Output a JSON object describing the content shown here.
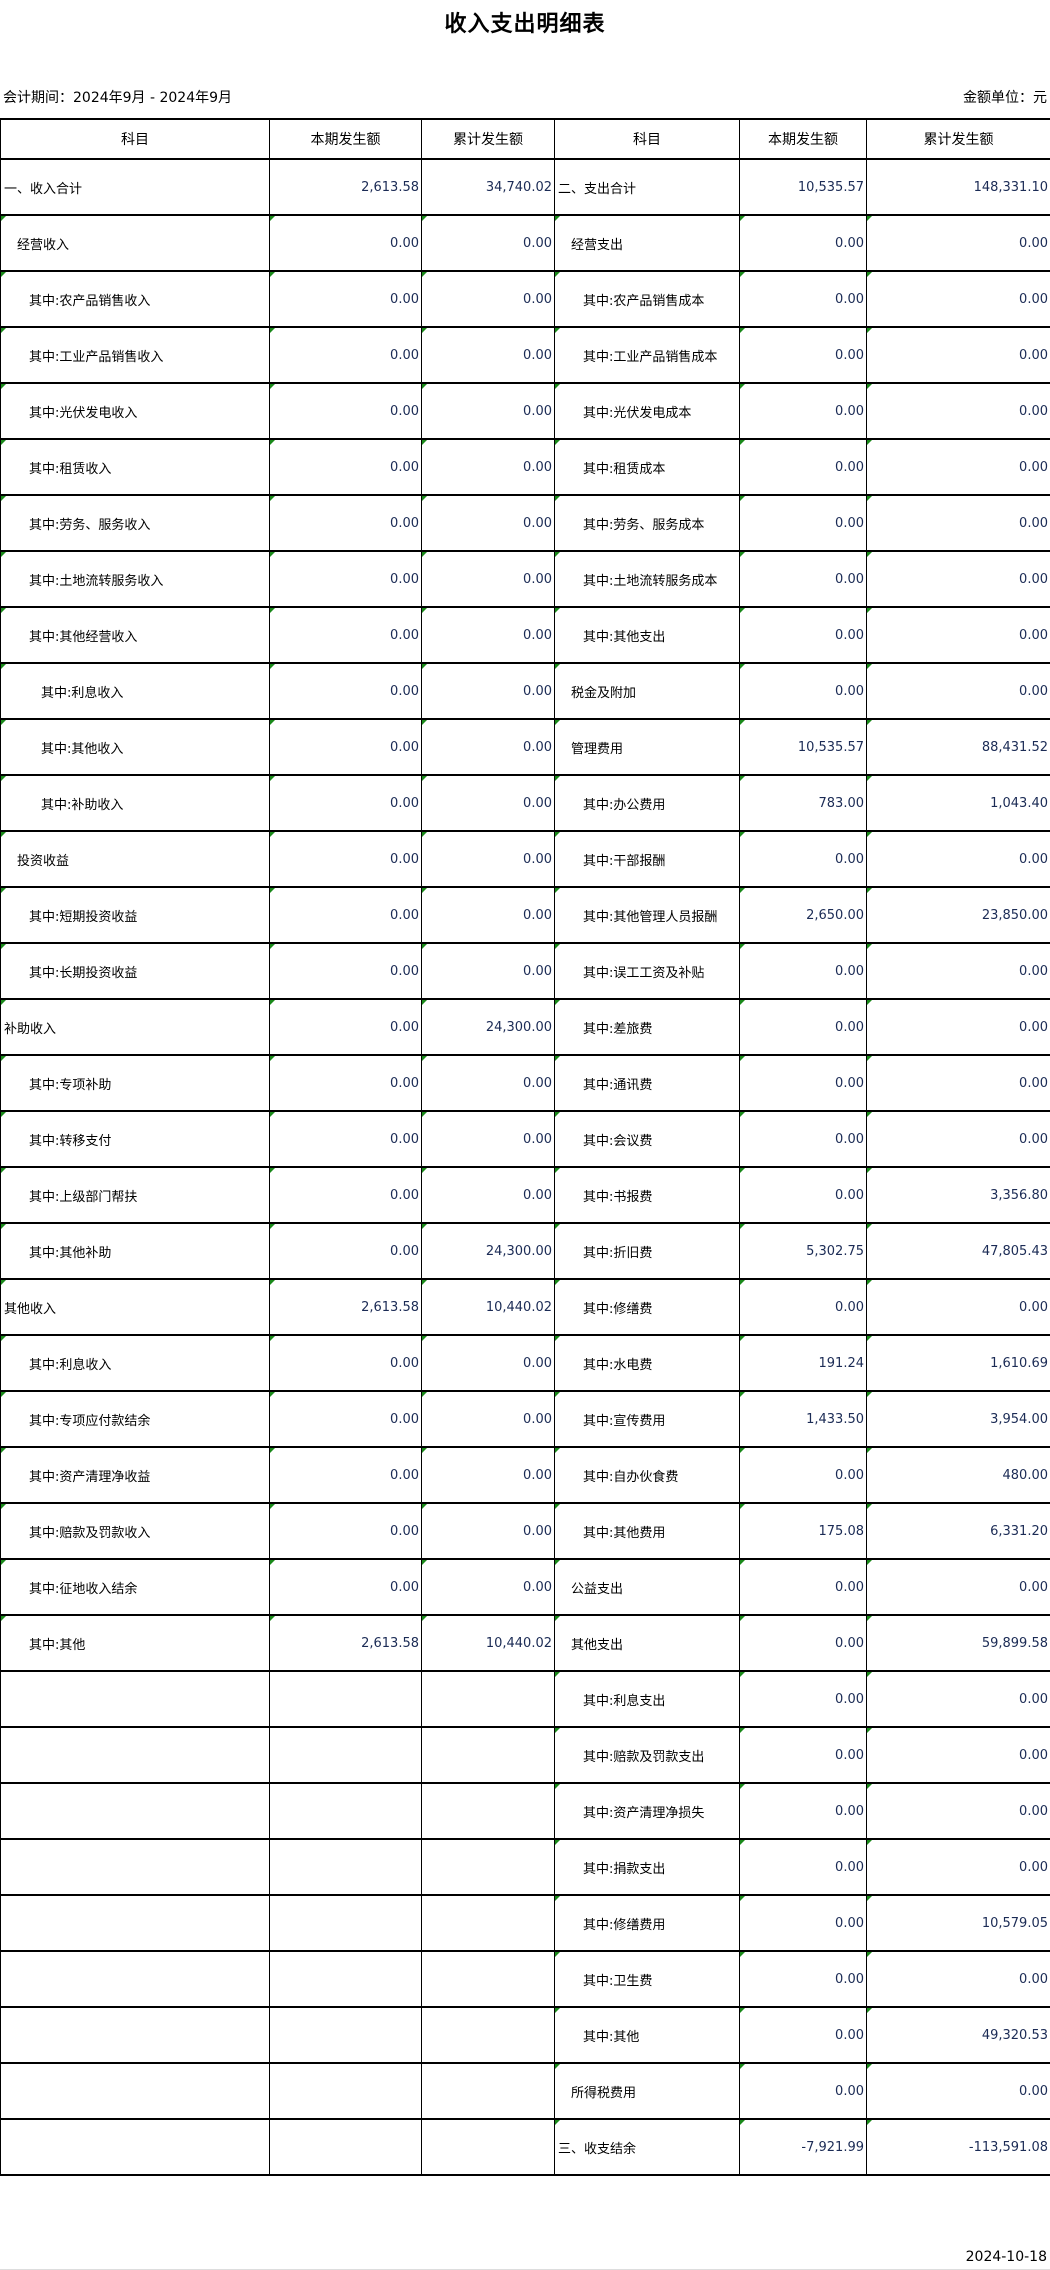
{
  "title": "收入支出明细表",
  "period": "会计期间：2024年9月 - 2024年9月",
  "unit": "金额单位：元",
  "headers": [
    "科目",
    "本期发生额",
    "累计发生额",
    "科目",
    "本期发生额",
    "累计发生额"
  ],
  "rows": [
    {
      "l": "一、收入合计",
      "li": 0,
      "lc": "2,613.58",
      "lt": "34,740.02",
      "r": "二、支出合计",
      "ri": 0,
      "rc": "10,535.57",
      "rt": "148,331.10"
    },
    {
      "l": "经营收入",
      "li": 1,
      "lc": "0.00",
      "lt": "0.00",
      "r": "经营支出",
      "ri": 1,
      "rc": "0.00",
      "rt": "0.00"
    },
    {
      "l": "其中:农产品销售收入",
      "li": 2,
      "lc": "0.00",
      "lt": "0.00",
      "r": "其中:农产品销售成本",
      "ri": 2,
      "rc": "0.00",
      "rt": "0.00"
    },
    {
      "l": "其中:工业产品销售收入",
      "li": 2,
      "lc": "0.00",
      "lt": "0.00",
      "r": "其中:工业产品销售成本",
      "ri": 2,
      "rc": "0.00",
      "rt": "0.00"
    },
    {
      "l": "其中:光伏发电收入",
      "li": 2,
      "lc": "0.00",
      "lt": "0.00",
      "r": "其中:光伏发电成本",
      "ri": 2,
      "rc": "0.00",
      "rt": "0.00"
    },
    {
      "l": "其中:租赁收入",
      "li": 2,
      "lc": "0.00",
      "lt": "0.00",
      "r": "其中:租赁成本",
      "ri": 2,
      "rc": "0.00",
      "rt": "0.00"
    },
    {
      "l": "其中:劳务、服务收入",
      "li": 2,
      "lc": "0.00",
      "lt": "0.00",
      "r": "其中:劳务、服务成本",
      "ri": 2,
      "rc": "0.00",
      "rt": "0.00"
    },
    {
      "l": "其中:土地流转服务收入",
      "li": 2,
      "lc": "0.00",
      "lt": "0.00",
      "r": "其中:土地流转服务成本",
      "ri": 2,
      "rc": "0.00",
      "rt": "0.00"
    },
    {
      "l": "其中:其他经营收入",
      "li": 2,
      "lc": "0.00",
      "lt": "0.00",
      "r": "其中:其他支出",
      "ri": 2,
      "rc": "0.00",
      "rt": "0.00"
    },
    {
      "l": "其中:利息收入",
      "li": 3,
      "lc": "0.00",
      "lt": "0.00",
      "r": "税金及附加",
      "ri": 1,
      "rc": "0.00",
      "rt": "0.00"
    },
    {
      "l": "其中:其他收入",
      "li": 3,
      "lc": "0.00",
      "lt": "0.00",
      "r": "管理费用",
      "ri": 1,
      "rc": "10,535.57",
      "rt": "88,431.52"
    },
    {
      "l": "其中:补助收入",
      "li": 3,
      "lc": "0.00",
      "lt": "0.00",
      "r": "其中:办公费用",
      "ri": 2,
      "rc": "783.00",
      "rt": "1,043.40"
    },
    {
      "l": "投资收益",
      "li": 1,
      "lc": "0.00",
      "lt": "0.00",
      "r": "其中:干部报酬",
      "ri": 2,
      "rc": "0.00",
      "rt": "0.00"
    },
    {
      "l": "其中:短期投资收益",
      "li": 2,
      "lc": "0.00",
      "lt": "0.00",
      "r": "其中:其他管理人员报酬",
      "ri": 2,
      "rc": "2,650.00",
      "rt": "23,850.00"
    },
    {
      "l": "其中:长期投资收益",
      "li": 2,
      "lc": "0.00",
      "lt": "0.00",
      "r": "其中:误工工资及补贴",
      "ri": 2,
      "rc": "0.00",
      "rt": "0.00"
    },
    {
      "l": "补助收入",
      "li": 0,
      "lc": "0.00",
      "lt": "24,300.00",
      "r": "其中:差旅费",
      "ri": 2,
      "rc": "0.00",
      "rt": "0.00"
    },
    {
      "l": "其中:专项补助",
      "li": 2,
      "lc": "0.00",
      "lt": "0.00",
      "r": "其中:通讯费",
      "ri": 2,
      "rc": "0.00",
      "rt": "0.00"
    },
    {
      "l": "其中:转移支付",
      "li": 2,
      "lc": "0.00",
      "lt": "0.00",
      "r": "其中:会议费",
      "ri": 2,
      "rc": "0.00",
      "rt": "0.00"
    },
    {
      "l": "其中:上级部门帮扶",
      "li": 2,
      "lc": "0.00",
      "lt": "0.00",
      "r": "其中:书报费",
      "ri": 2,
      "rc": "0.00",
      "rt": "3,356.80"
    },
    {
      "l": "其中:其他补助",
      "li": 2,
      "lc": "0.00",
      "lt": "24,300.00",
      "r": "其中:折旧费",
      "ri": 2,
      "rc": "5,302.75",
      "rt": "47,805.43"
    },
    {
      "l": "其他收入",
      "li": 0,
      "lc": "2,613.58",
      "lt": "10,440.02",
      "r": "其中:修缮费",
      "ri": 2,
      "rc": "0.00",
      "rt": "0.00"
    },
    {
      "l": "其中:利息收入",
      "li": 2,
      "lc": "0.00",
      "lt": "0.00",
      "r": "其中:水电费",
      "ri": 2,
      "rc": "191.24",
      "rt": "1,610.69"
    },
    {
      "l": "其中:专项应付款结余",
      "li": 2,
      "lc": "0.00",
      "lt": "0.00",
      "r": "其中:宣传费用",
      "ri": 2,
      "rc": "1,433.50",
      "rt": "3,954.00"
    },
    {
      "l": "其中:资产清理净收益",
      "li": 2,
      "lc": "0.00",
      "lt": "0.00",
      "r": "其中:自办伙食费",
      "ri": 2,
      "rc": "0.00",
      "rt": "480.00"
    },
    {
      "l": "其中:赔款及罚款收入",
      "li": 2,
      "lc": "0.00",
      "lt": "0.00",
      "r": "其中:其他费用",
      "ri": 2,
      "rc": "175.08",
      "rt": "6,331.20"
    },
    {
      "l": "其中:征地收入结余",
      "li": 2,
      "lc": "0.00",
      "lt": "0.00",
      "r": "公益支出",
      "ri": 1,
      "rc": "0.00",
      "rt": "0.00"
    },
    {
      "l": "其中:其他",
      "li": 2,
      "lc": "2,613.58",
      "lt": "10,440.02",
      "r": "其他支出",
      "ri": 1,
      "rc": "0.00",
      "rt": "59,899.58"
    },
    {
      "l": "",
      "li": 0,
      "lc": "",
      "lt": "",
      "r": "其中:利息支出",
      "ri": 2,
      "rc": "0.00",
      "rt": "0.00"
    },
    {
      "l": "",
      "li": 0,
      "lc": "",
      "lt": "",
      "r": "其中:赔款及罚款支出",
      "ri": 2,
      "rc": "0.00",
      "rt": "0.00"
    },
    {
      "l": "",
      "li": 0,
      "lc": "",
      "lt": "",
      "r": "其中:资产清理净损失",
      "ri": 2,
      "rc": "0.00",
      "rt": "0.00"
    },
    {
      "l": "",
      "li": 0,
      "lc": "",
      "lt": "",
      "r": "其中:捐款支出",
      "ri": 2,
      "rc": "0.00",
      "rt": "0.00"
    },
    {
      "l": "",
      "li": 0,
      "lc": "",
      "lt": "",
      "r": "其中:修缮费用",
      "ri": 2,
      "rc": "0.00",
      "rt": "10,579.05"
    },
    {
      "l": "",
      "li": 0,
      "lc": "",
      "lt": "",
      "r": "其中:卫生费",
      "ri": 2,
      "rc": "0.00",
      "rt": "0.00"
    },
    {
      "l": "",
      "li": 0,
      "lc": "",
      "lt": "",
      "r": "其中:其他",
      "ri": 2,
      "rc": "0.00",
      "rt": "49,320.53"
    },
    {
      "l": "",
      "li": 0,
      "lc": "",
      "lt": "",
      "r": "所得税费用",
      "ri": 1,
      "rc": "0.00",
      "rt": "0.00"
    },
    {
      "l": "",
      "li": 0,
      "lc": "",
      "lt": "",
      "r": "三、收支结余",
      "ri": 0,
      "rc": "-7,921.99",
      "rt": "-113,591.08"
    }
  ],
  "footer_date": "2024-10-18",
  "colors": {
    "number_text": "#1b2b55",
    "error_marker": "#1a8a1a"
  }
}
